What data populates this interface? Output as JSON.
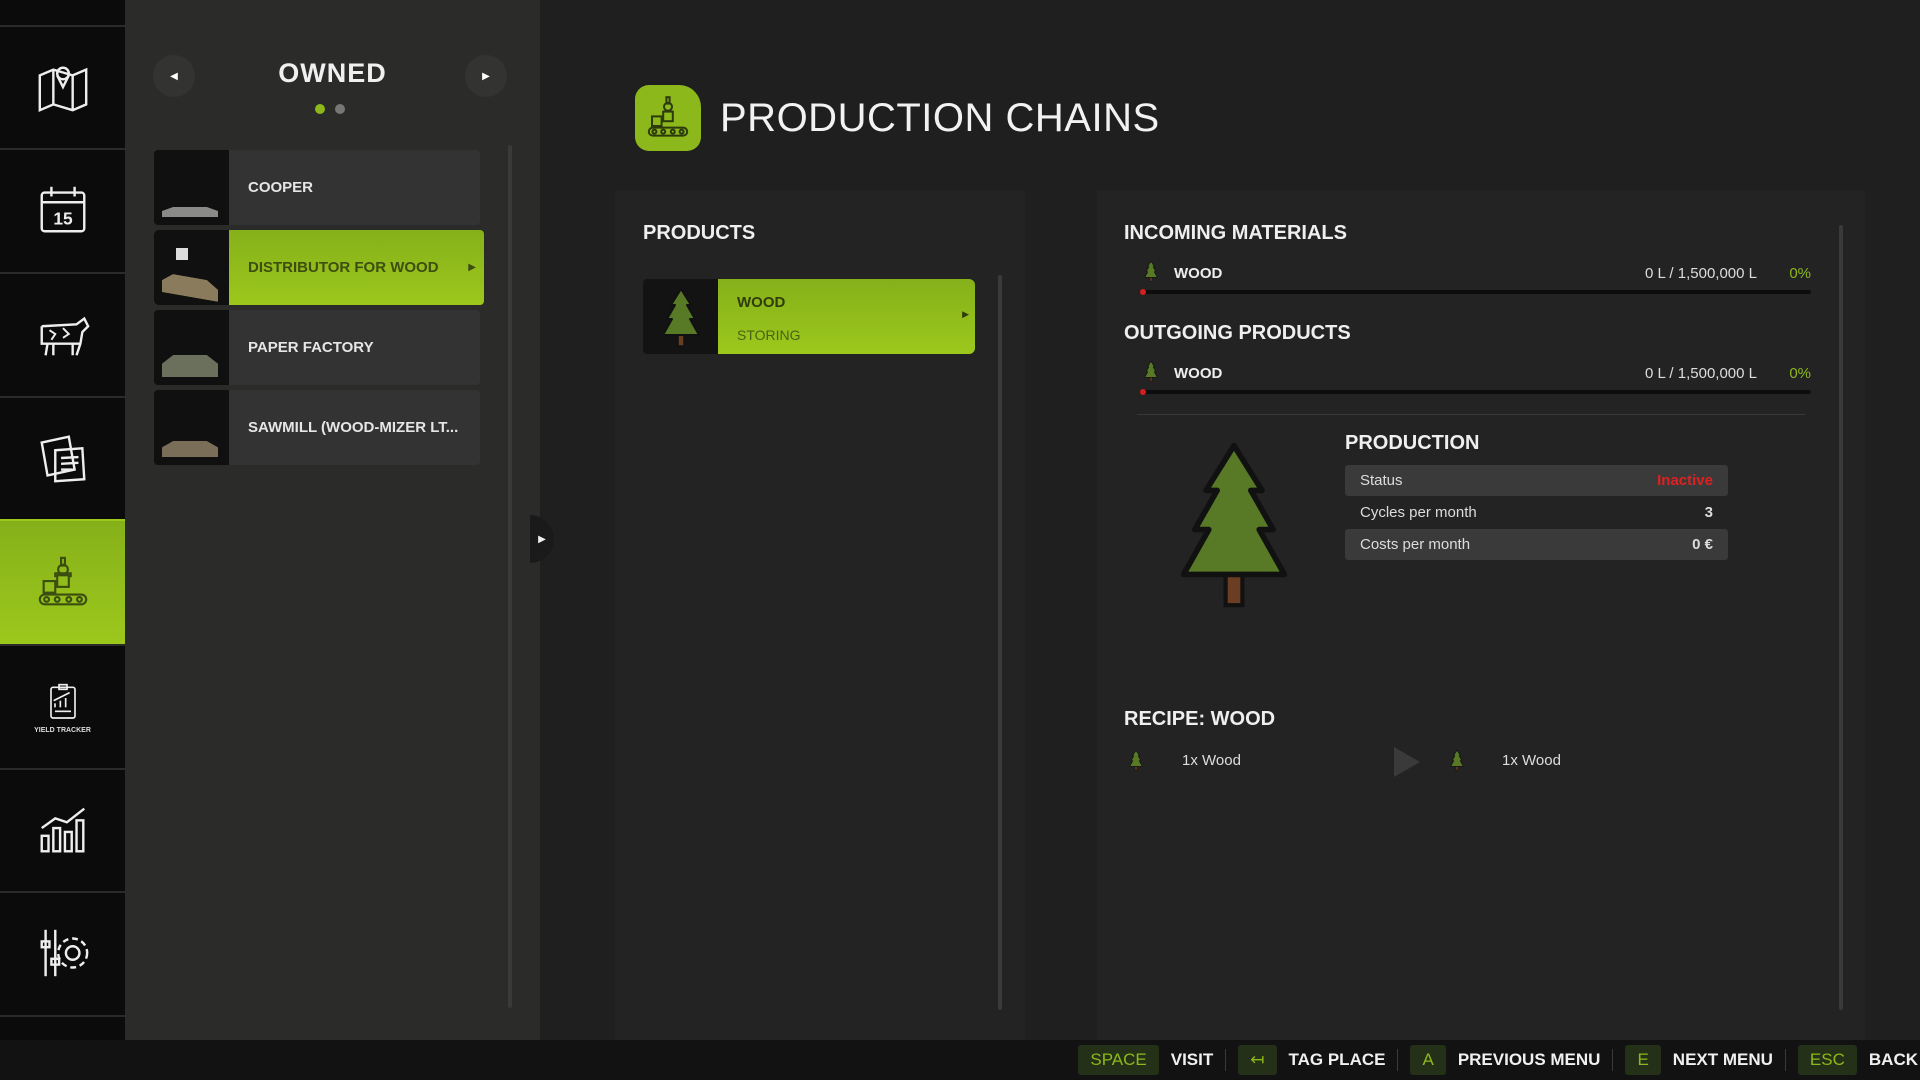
{
  "sidebar": {
    "items": [
      {
        "icon": "map-icon"
      },
      {
        "icon": "calendar-icon",
        "label": "15"
      },
      {
        "icon": "cow-icon"
      },
      {
        "icon": "contracts-icon"
      },
      {
        "icon": "production-icon",
        "active": true
      },
      {
        "icon": "yield-tracker-icon",
        "label": "YIELD TRACKER"
      },
      {
        "icon": "statistics-icon"
      },
      {
        "icon": "settings-icon"
      }
    ]
  },
  "owned": {
    "title": "OWNED",
    "page_count": 2,
    "current_page": 1,
    "items": [
      {
        "label": "COOPER"
      },
      {
        "label": "DISTRIBUTOR FOR WOOD",
        "selected": true
      },
      {
        "label": "PAPER FACTORY"
      },
      {
        "label": "SAWMILL (WOOD-MIZER LT..."
      }
    ]
  },
  "header": {
    "title": "PRODUCTION CHAINS"
  },
  "products": {
    "title": "PRODUCTS",
    "items": [
      {
        "name": "WOOD",
        "state": "STORING"
      }
    ]
  },
  "incoming": {
    "title": "INCOMING MATERIALS",
    "items": [
      {
        "name": "WOOD",
        "amount": "0 L / 1,500,000 L",
        "percent": "0%",
        "fill": 0
      }
    ]
  },
  "outgoing": {
    "title": "OUTGOING PRODUCTS",
    "items": [
      {
        "name": "WOOD",
        "amount": "0 L / 1,500,000 L",
        "percent": "0%",
        "fill": 0
      }
    ]
  },
  "production": {
    "title": "PRODUCTION",
    "rows": [
      {
        "label": "Status",
        "value": "Inactive"
      },
      {
        "label": "Cycles per month",
        "value": "3"
      },
      {
        "label": "Costs per month",
        "value": "0 €"
      }
    ]
  },
  "recipe": {
    "title": "RECIPE: WOOD",
    "input": "1x Wood",
    "output": "1x Wood"
  },
  "hints": [
    {
      "key": "SPACE",
      "label": "VISIT"
    },
    {
      "key": "↤",
      "label": "TAG PLACE"
    },
    {
      "key": "A",
      "label": "PREVIOUS MENU"
    },
    {
      "key": "E",
      "label": "NEXT MENU"
    },
    {
      "key": "ESC",
      "label": "BACK"
    }
  ],
  "colors": {
    "accent": "#8cb81b",
    "inactive": "#e02020",
    "background": "#1f1f1f"
  }
}
